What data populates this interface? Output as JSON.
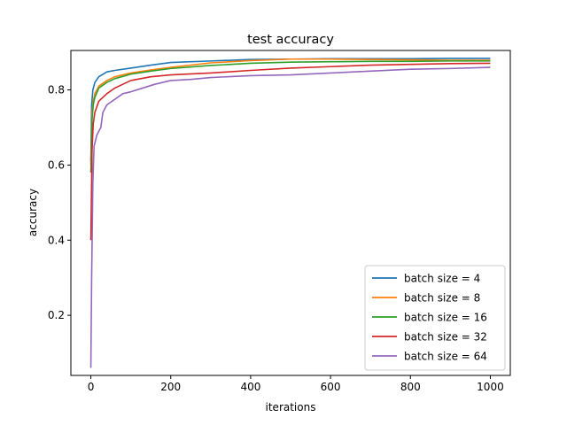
{
  "chart_data": {
    "type": "line",
    "title": "test accuracy",
    "xlabel": "iterations",
    "ylabel": "accuracy",
    "xlim": [
      -50,
      1050
    ],
    "ylim": [
      0.04,
      0.905
    ],
    "xticks": [
      0,
      200,
      400,
      600,
      800,
      1000
    ],
    "yticks": [
      0.2,
      0.4,
      0.6,
      0.8
    ],
    "xtick_labels": [
      "0",
      "200",
      "400",
      "600",
      "800",
      "1000"
    ],
    "ytick_labels": [
      "0.2",
      "0.4",
      "0.6",
      "0.8"
    ],
    "grid": false,
    "legend_position": "lower-right",
    "series": [
      {
        "name": "batch size = 4",
        "color": "#1f77b4",
        "points": [
          [
            0,
            0.61
          ],
          [
            2,
            0.76
          ],
          [
            5,
            0.8
          ],
          [
            10,
            0.82
          ],
          [
            20,
            0.835
          ],
          [
            40,
            0.848
          ],
          [
            60,
            0.852
          ],
          [
            100,
            0.858
          ],
          [
            150,
            0.866
          ],
          [
            200,
            0.873
          ],
          [
            300,
            0.877
          ],
          [
            400,
            0.881
          ],
          [
            500,
            0.882
          ],
          [
            600,
            0.883
          ],
          [
            700,
            0.883
          ],
          [
            800,
            0.883
          ],
          [
            900,
            0.884
          ],
          [
            1000,
            0.884
          ]
        ]
      },
      {
        "name": "batch size = 8",
        "color": "#ff7f0e",
        "points": [
          [
            0,
            0.6
          ],
          [
            3,
            0.74
          ],
          [
            6,
            0.77
          ],
          [
            10,
            0.79
          ],
          [
            20,
            0.81
          ],
          [
            40,
            0.825
          ],
          [
            60,
            0.835
          ],
          [
            100,
            0.845
          ],
          [
            150,
            0.853
          ],
          [
            200,
            0.86
          ],
          [
            300,
            0.872
          ],
          [
            400,
            0.878
          ],
          [
            500,
            0.882
          ],
          [
            600,
            0.882
          ],
          [
            700,
            0.881
          ],
          [
            800,
            0.88
          ],
          [
            900,
            0.879
          ],
          [
            1000,
            0.879
          ]
        ]
      },
      {
        "name": "batch size = 16",
        "color": "#2ca02c",
        "points": [
          [
            0,
            0.58
          ],
          [
            3,
            0.72
          ],
          [
            6,
            0.76
          ],
          [
            10,
            0.78
          ],
          [
            20,
            0.805
          ],
          [
            40,
            0.82
          ],
          [
            60,
            0.83
          ],
          [
            100,
            0.842
          ],
          [
            150,
            0.85
          ],
          [
            200,
            0.857
          ],
          [
            300,
            0.865
          ],
          [
            400,
            0.871
          ],
          [
            500,
            0.874
          ],
          [
            600,
            0.875
          ],
          [
            700,
            0.876
          ],
          [
            800,
            0.876
          ],
          [
            900,
            0.877
          ],
          [
            1000,
            0.877
          ]
        ]
      },
      {
        "name": "batch size = 32",
        "color": "#d62728",
        "points": [
          [
            0,
            0.4
          ],
          [
            3,
            0.64
          ],
          [
            6,
            0.71
          ],
          [
            10,
            0.74
          ],
          [
            20,
            0.77
          ],
          [
            40,
            0.79
          ],
          [
            60,
            0.805
          ],
          [
            100,
            0.825
          ],
          [
            150,
            0.835
          ],
          [
            200,
            0.84
          ],
          [
            300,
            0.845
          ],
          [
            400,
            0.852
          ],
          [
            500,
            0.858
          ],
          [
            600,
            0.862
          ],
          [
            700,
            0.866
          ],
          [
            800,
            0.868
          ],
          [
            900,
            0.87
          ],
          [
            1000,
            0.871
          ]
        ]
      },
      {
        "name": "batch size = 64",
        "color": "#9467bd",
        "points": [
          [
            0,
            0.06
          ],
          [
            2,
            0.3
          ],
          [
            5,
            0.55
          ],
          [
            8,
            0.65
          ],
          [
            15,
            0.68
          ],
          [
            25,
            0.7
          ],
          [
            30,
            0.74
          ],
          [
            40,
            0.76
          ],
          [
            60,
            0.775
          ],
          [
            80,
            0.79
          ],
          [
            100,
            0.795
          ],
          [
            130,
            0.805
          ],
          [
            160,
            0.815
          ],
          [
            200,
            0.825
          ],
          [
            250,
            0.828
          ],
          [
            300,
            0.833
          ],
          [
            400,
            0.838
          ],
          [
            500,
            0.84
          ],
          [
            600,
            0.845
          ],
          [
            700,
            0.85
          ],
          [
            800,
            0.855
          ],
          [
            900,
            0.857
          ],
          [
            1000,
            0.86
          ]
        ]
      }
    ]
  }
}
